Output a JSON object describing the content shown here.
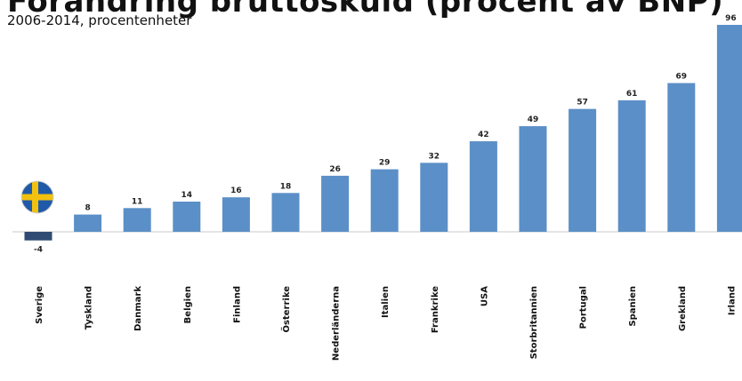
{
  "chart_data": {
    "type": "bar",
    "title": "Förändring bruttoskuld (procent av BNP)",
    "subtitle": "2006-2014, procentenheter",
    "categories": [
      "Sverige",
      "Tyskland",
      "Danmark",
      "Belgien",
      "Finland",
      "Österrike",
      "Nederländerna",
      "Italien",
      "Frankrike",
      "USA",
      "Storbritannien",
      "Portugal",
      "Spanien",
      "Grekland",
      "Irland"
    ],
    "values": [
      -4,
      8,
      11,
      14,
      16,
      18,
      26,
      29,
      32,
      42,
      49,
      57,
      61,
      69,
      96
    ],
    "ylim": [
      -4,
      96
    ],
    "grid": false,
    "bar_color": "#5b8fc7",
    "highlight_bar_color": "#2f4b73",
    "highlight_category": "Sverige",
    "flag_icon": "swedish-flag-icon",
    "flag_colors": {
      "blue": "#1f5aa8",
      "yellow": "#f2c10f"
    }
  }
}
